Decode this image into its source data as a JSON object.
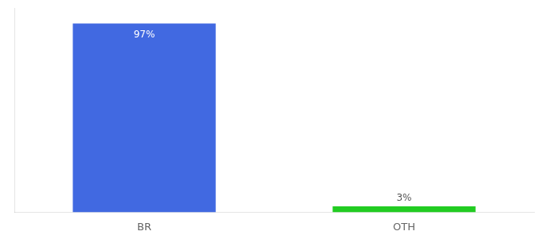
{
  "chart_data": {
    "type": "bar",
    "categories": [
      "BR",
      "OTH"
    ],
    "values": [
      97,
      3
    ],
    "value_labels": [
      "97%",
      "3%"
    ],
    "data_labels": true,
    "colors": [
      "#4169E1",
      "#22CC22"
    ],
    "ylim": [
      0,
      105
    ],
    "tick_labels": "x",
    "grid": false
  }
}
